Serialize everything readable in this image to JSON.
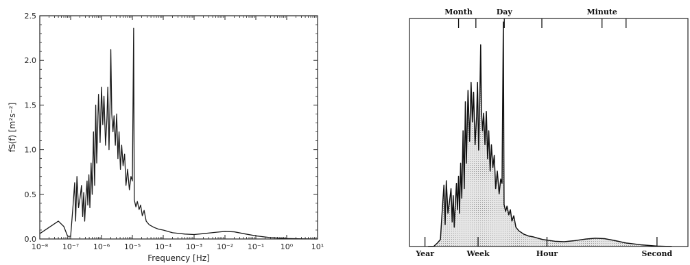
{
  "chart_data": [
    {
      "type": "line",
      "title": "",
      "xlabel": "Frequency  [Hz]",
      "ylabel": "fS(f)  [m²s⁻²]",
      "x_scale": "log",
      "xlim": [
        1e-08,
        10
      ],
      "ylim": [
        0,
        2.5
      ],
      "x_ticks": [
        {
          "label": "10⁻⁸",
          "value": 1e-08
        },
        {
          "label": "10⁻⁷",
          "value": 1e-07
        },
        {
          "label": "10⁻⁶",
          "value": 1e-06
        },
        {
          "label": "10⁻⁵",
          "value": 1e-05
        },
        {
          "label": "10⁻⁴",
          "value": 0.0001
        },
        {
          "label": "10⁻³",
          "value": 0.001
        },
        {
          "label": "10⁻²",
          "value": 0.01
        },
        {
          "label": "10⁻¹",
          "value": 0.1
        },
        {
          "label": "10⁰",
          "value": 1
        },
        {
          "label": "10¹",
          "value": 10
        }
      ],
      "y_ticks": [
        {
          "label": "0.0",
          "value": 0
        },
        {
          "label": "0.5",
          "value": 0.5
        },
        {
          "label": "1.0",
          "value": 1.0
        },
        {
          "label": "1.5",
          "value": 1.5
        },
        {
          "label": "2.0",
          "value": 2.0
        },
        {
          "label": "2.5",
          "value": 2.5
        }
      ],
      "grid": false,
      "color": "#1a1a1a",
      "series": [
        {
          "points": [
            [
              1e-08,
              0.06
            ],
            [
              2e-08,
              0.13
            ],
            [
              4e-08,
              0.2
            ],
            [
              6e-08,
              0.14
            ],
            [
              8e-08,
              0.03
            ],
            [
              1e-07,
              0.03
            ],
            [
              1.2e-07,
              0.38
            ],
            [
              1.35e-07,
              0.63
            ],
            [
              1.45e-07,
              0.2
            ],
            [
              1.6e-07,
              0.7
            ],
            [
              1.8e-07,
              0.35
            ],
            [
              2e-07,
              0.45
            ],
            [
              2.25e-07,
              0.6
            ],
            [
              2.45e-07,
              0.25
            ],
            [
              2.65e-07,
              0.52
            ],
            [
              2.85e-07,
              0.2
            ],
            [
              3.1e-07,
              0.45
            ],
            [
              3.4e-07,
              0.65
            ],
            [
              3.6e-07,
              0.38
            ],
            [
              3.9e-07,
              0.72
            ],
            [
              4.2e-07,
              0.35
            ],
            [
              4.6e-07,
              0.85
            ],
            [
              5e-07,
              0.5
            ],
            [
              5.5e-07,
              1.2
            ],
            [
              6e-07,
              0.6
            ],
            [
              6.5e-07,
              1.5
            ],
            [
              7e-07,
              0.85
            ],
            [
              8e-07,
              1.62
            ],
            [
              9e-07,
              1.08
            ],
            [
              1e-06,
              1.7
            ],
            [
              1.1e-06,
              1.28
            ],
            [
              1.2e-06,
              1.6
            ],
            [
              1.35e-06,
              1.05
            ],
            [
              1.5e-06,
              1.35
            ],
            [
              1.6e-06,
              1.7
            ],
            [
              1.75e-06,
              1.0
            ],
            [
              1.9e-06,
              1.55
            ],
            [
              2e-06,
              2.12
            ],
            [
              2.15e-06,
              1.4
            ],
            [
              2.35e-06,
              1.2
            ],
            [
              2.55e-06,
              1.38
            ],
            [
              2.8e-06,
              1.05
            ],
            [
              3.1e-06,
              1.4
            ],
            [
              3.4e-06,
              0.9
            ],
            [
              3.7e-06,
              1.2
            ],
            [
              4.1e-06,
              0.78
            ],
            [
              4.5e-06,
              1.05
            ],
            [
              5e-06,
              0.82
            ],
            [
              5.6e-06,
              0.95
            ],
            [
              6.2e-06,
              0.6
            ],
            [
              7e-06,
              0.78
            ],
            [
              8e-06,
              0.55
            ],
            [
              9e-06,
              0.7
            ],
            [
              1e-05,
              0.65
            ],
            [
              1.1e-05,
              2.36
            ],
            [
              1.15e-05,
              0.44
            ],
            [
              1.3e-05,
              0.36
            ],
            [
              1.45e-05,
              0.42
            ],
            [
              1.65e-05,
              0.33
            ],
            [
              1.85e-05,
              0.38
            ],
            [
              2.1e-05,
              0.26
            ],
            [
              2.4e-05,
              0.32
            ],
            [
              2.8e-05,
              0.2
            ],
            [
              3.5e-05,
              0.16
            ],
            [
              5e-05,
              0.13
            ],
            [
              7e-05,
              0.11
            ],
            [
              0.0001,
              0.1
            ],
            [
              0.0002,
              0.07
            ],
            [
              0.0005,
              0.055
            ],
            [
              0.001,
              0.05
            ],
            [
              0.002,
              0.06
            ],
            [
              0.005,
              0.075
            ],
            [
              0.01,
              0.085
            ],
            [
              0.02,
              0.08
            ],
            [
              0.04,
              0.06
            ],
            [
              0.1,
              0.035
            ],
            [
              0.3,
              0.015
            ],
            [
              1,
              0.006
            ],
            [
              3,
              0.002
            ],
            [
              10,
              0.0
            ]
          ]
        }
      ]
    },
    {
      "type": "area",
      "title": "",
      "x_scale": "log",
      "top_labels": [
        {
          "label": "Month",
          "value": 3.86e-07
        },
        {
          "label": "Day",
          "value": 1.16e-05
        },
        {
          "label": "Minute",
          "value": 0.0167
        }
      ],
      "bottom_labels": [
        {
          "label": "Year",
          "value": 3.17e-08
        },
        {
          "label": "Week",
          "value": 1.65e-06
        },
        {
          "label": "Hour",
          "value": 0.000278
        },
        {
          "label": "Second",
          "value": 1
        }
      ],
      "fill": "#d4d4d4",
      "color": "#111111",
      "series": [
        {
          "points": [
            [
              4e-08,
              0.0
            ],
            [
              6e-08,
              0.0
            ],
            [
              8e-08,
              0.04
            ],
            [
              1e-07,
              0.08
            ],
            [
              1.15e-07,
              0.42
            ],
            [
              1.3e-07,
              0.7
            ],
            [
              1.42e-07,
              0.25
            ],
            [
              1.55e-07,
              0.75
            ],
            [
              1.75e-07,
              0.38
            ],
            [
              1.95e-07,
              0.5
            ],
            [
              2.2e-07,
              0.66
            ],
            [
              2.4e-07,
              0.28
            ],
            [
              2.6e-07,
              0.58
            ],
            [
              2.8e-07,
              0.22
            ],
            [
              3.05e-07,
              0.5
            ],
            [
              3.3e-07,
              0.72
            ],
            [
              3.55e-07,
              0.42
            ],
            [
              3.85e-07,
              0.8
            ],
            [
              4.15e-07,
              0.38
            ],
            [
              4.5e-07,
              0.95
            ],
            [
              4.9e-07,
              0.55
            ],
            [
              5.4e-07,
              1.32
            ],
            [
              5.9e-07,
              0.66
            ],
            [
              6.4e-07,
              1.65
            ],
            [
              6.9e-07,
              0.95
            ],
            [
              7.8e-07,
              1.78
            ],
            [
              8.8e-07,
              1.2
            ],
            [
              9.8e-07,
              1.87
            ],
            [
              1.08e-06,
              1.42
            ],
            [
              1.18e-06,
              1.76
            ],
            [
              1.32e-06,
              1.16
            ],
            [
              1.48e-06,
              1.48
            ],
            [
              1.58e-06,
              1.87
            ],
            [
              1.72e-06,
              1.1
            ],
            [
              1.88e-06,
              1.7
            ],
            [
              2e-06,
              2.3
            ],
            [
              2.12e-06,
              1.55
            ],
            [
              2.3e-06,
              1.32
            ],
            [
              2.5e-06,
              1.52
            ],
            [
              2.75e-06,
              1.16
            ],
            [
              3.05e-06,
              1.54
            ],
            [
              3.35e-06,
              1.0
            ],
            [
              3.65e-06,
              1.32
            ],
            [
              4.05e-06,
              0.86
            ],
            [
              4.45e-06,
              1.16
            ],
            [
              4.95e-06,
              0.9
            ],
            [
              5.5e-06,
              1.04
            ],
            [
              6.1e-06,
              0.66
            ],
            [
              6.9e-06,
              0.86
            ],
            [
              7.9e-06,
              0.6
            ],
            [
              8.9e-06,
              0.77
            ],
            [
              9.8e-06,
              0.72
            ],
            [
              1.08e-05,
              2.56
            ],
            [
              1.14e-05,
              0.48
            ],
            [
              1.28e-05,
              0.4
            ],
            [
              1.42e-05,
              0.46
            ],
            [
              1.62e-05,
              0.36
            ],
            [
              1.82e-05,
              0.42
            ],
            [
              2.05e-05,
              0.29
            ],
            [
              2.35e-05,
              0.35
            ],
            [
              2.75e-05,
              0.22
            ],
            [
              3.4e-05,
              0.18
            ],
            [
              5e-05,
              0.14
            ],
            [
              7e-05,
              0.12
            ],
            [
              0.0001,
              0.11
            ],
            [
              0.0002,
              0.08
            ],
            [
              0.0005,
              0.06
            ],
            [
              0.001,
              0.055
            ],
            [
              0.002,
              0.065
            ],
            [
              0.005,
              0.085
            ],
            [
              0.01,
              0.095
            ],
            [
              0.02,
              0.09
            ],
            [
              0.04,
              0.07
            ],
            [
              0.1,
              0.04
            ],
            [
              0.3,
              0.02
            ],
            [
              1,
              0.005
            ],
            [
              3,
              0.0
            ]
          ]
        }
      ]
    }
  ]
}
